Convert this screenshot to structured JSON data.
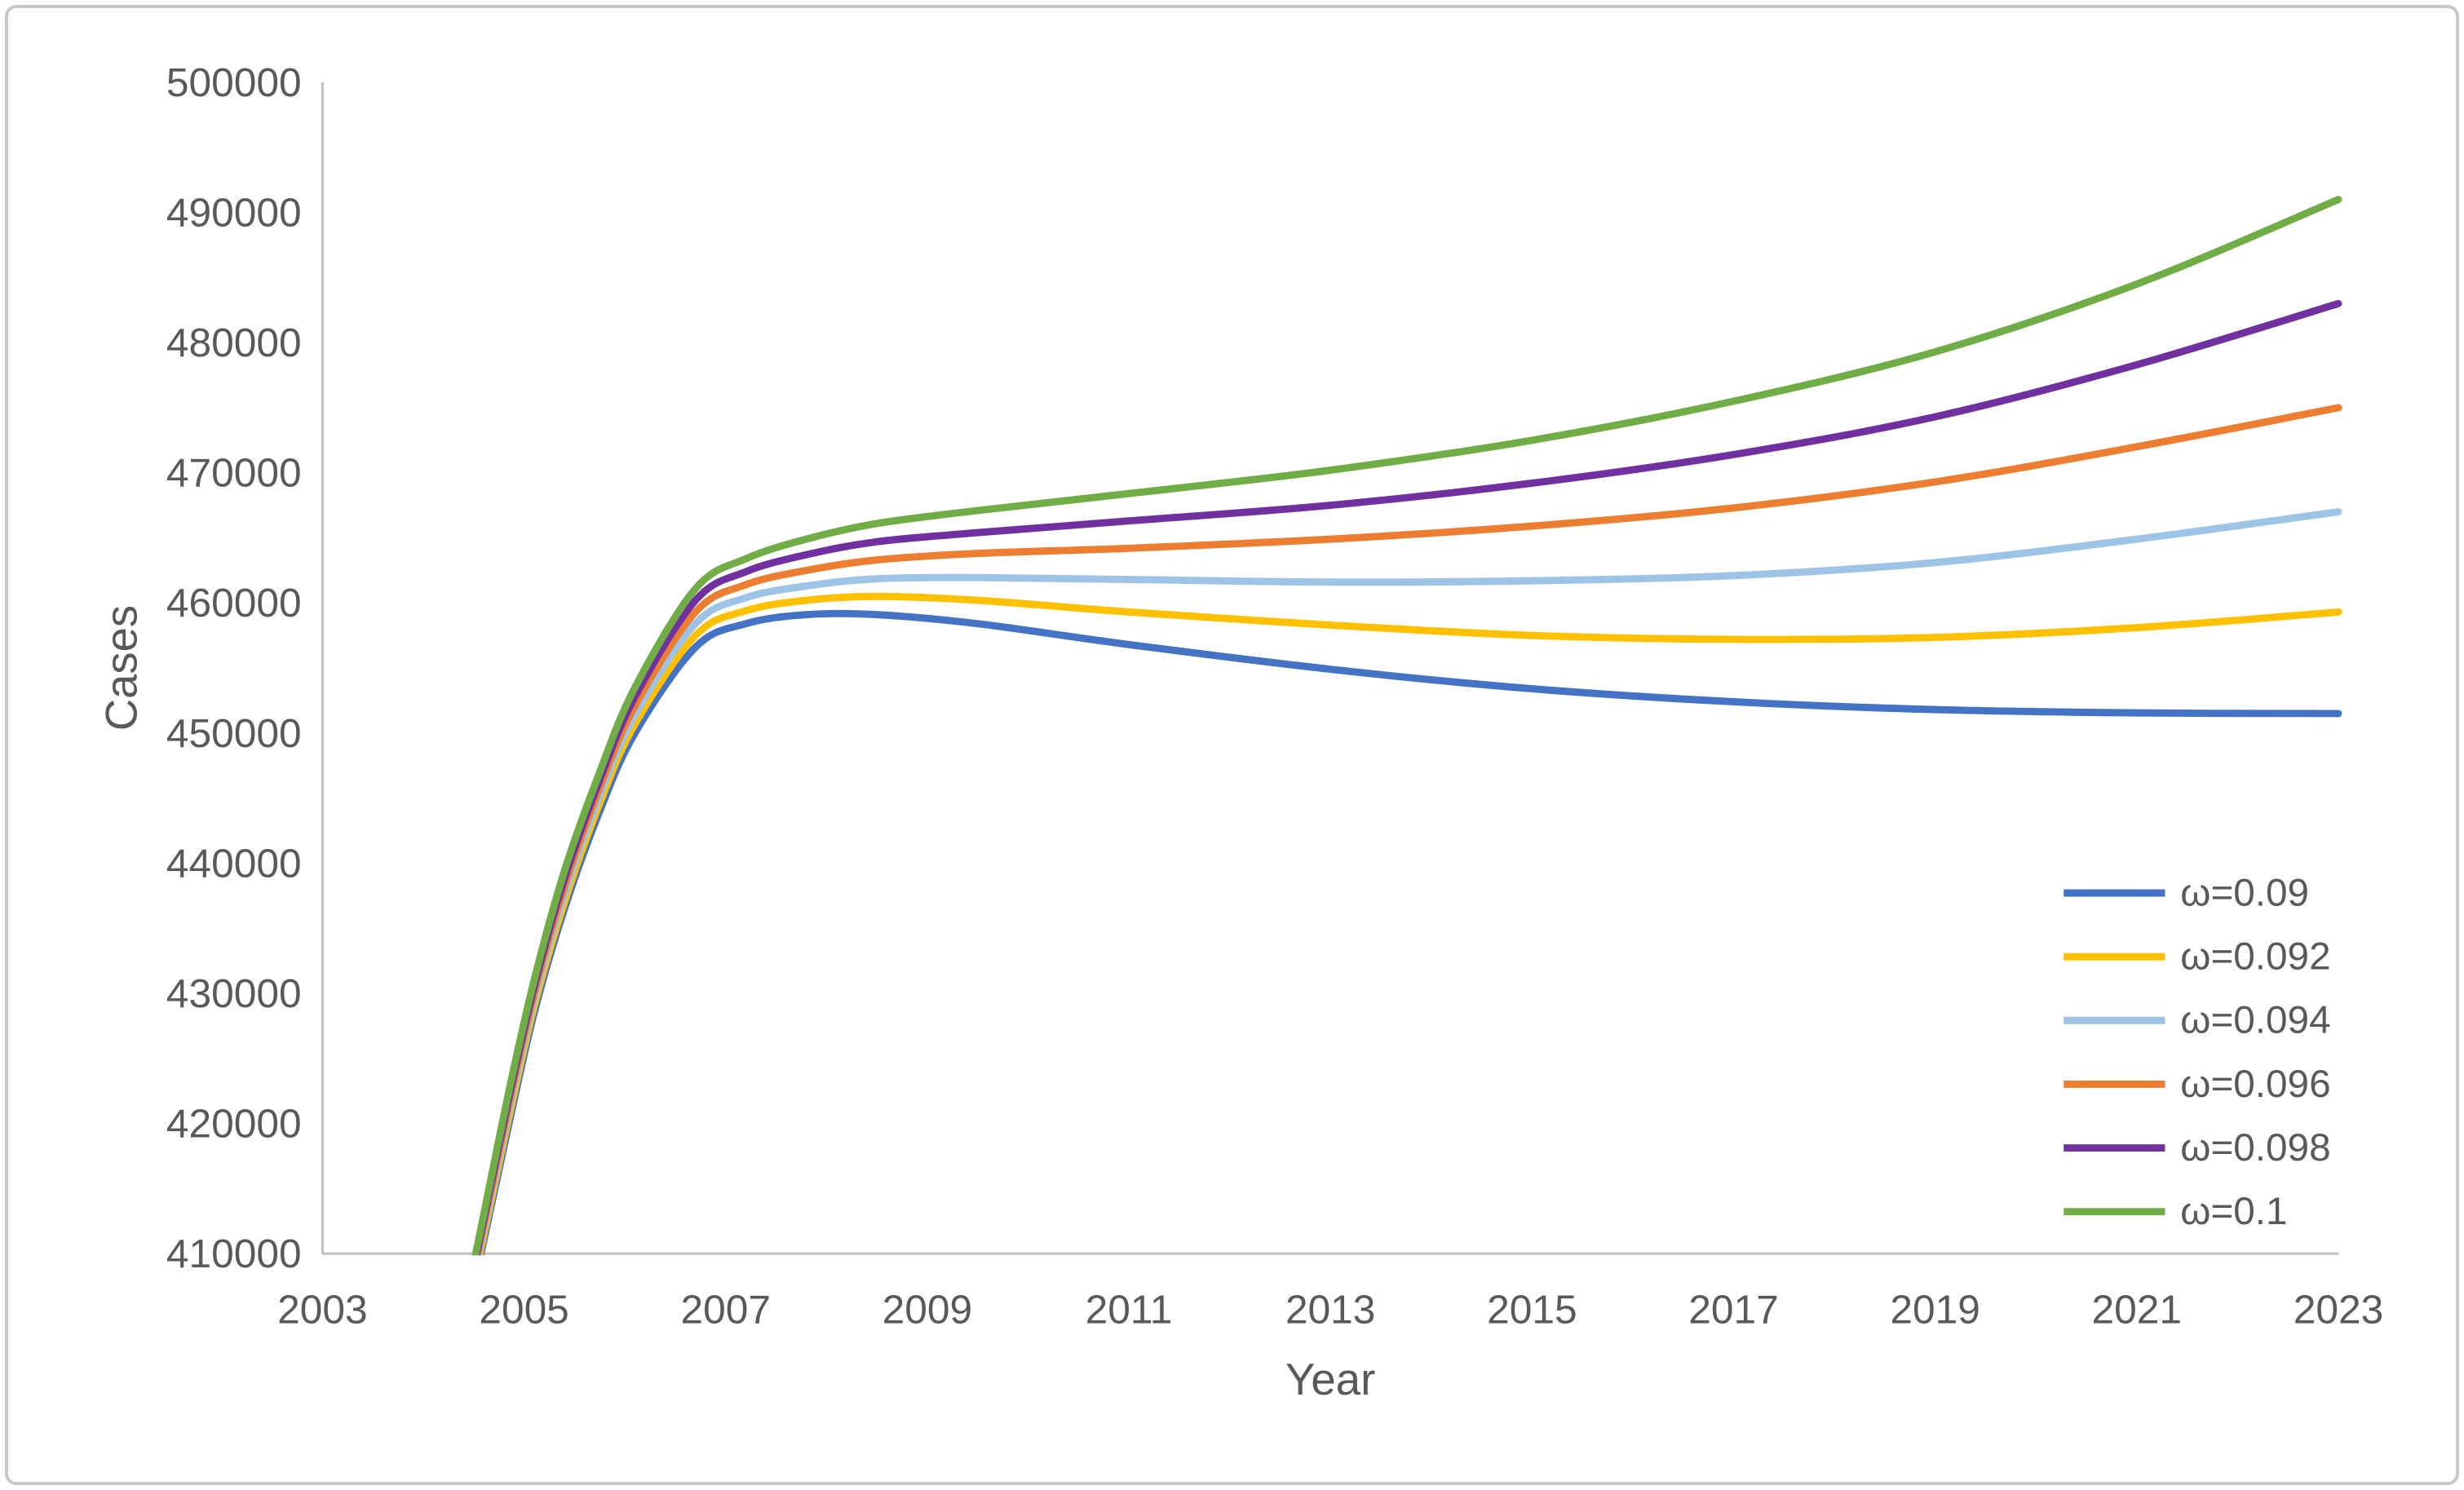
{
  "figure": {
    "background": "#ffffff",
    "border_color": "#c8c8c8"
  },
  "chart_data": {
    "type": "line",
    "title": "",
    "xlabel": "Year",
    "ylabel": "Cases",
    "xlim": [
      2003,
      2023
    ],
    "ylim": [
      410000,
      500000
    ],
    "x_ticks": [
      2003,
      2005,
      2007,
      2009,
      2011,
      2013,
      2015,
      2017,
      2019,
      2021,
      2023
    ],
    "y_ticks": [
      410000,
      420000,
      430000,
      440000,
      450000,
      460000,
      470000,
      480000,
      490000,
      500000
    ],
    "grid": false,
    "legend_position": "inside-lower-right",
    "axis_color": "#bfbfbf",
    "text_color": "#595959",
    "x": [
      2004.4,
      2004.6,
      2004.85,
      2005.1,
      2005.4,
      2005.75,
      2006.1,
      2006.7,
      2007.2,
      2007.8,
      2008.5,
      2009.5,
      2011,
      2013,
      2015,
      2017,
      2019,
      2021,
      2023
    ],
    "series": [
      {
        "name": "ω=0.09",
        "color": "#4472C4",
        "values": [
          404000,
          411000,
          420000,
          428500,
          436500,
          444000,
          450000,
          456600,
          458400,
          459100,
          459100,
          458400,
          456800,
          454900,
          453400,
          452400,
          451800,
          451550,
          451500
        ]
      },
      {
        "name": "ω=0.092",
        "color": "#FFC000",
        "values": [
          404300,
          411400,
          420500,
          429000,
          437000,
          444600,
          450700,
          457500,
          459400,
          460200,
          460500,
          460200,
          459300,
          458300,
          457500,
          457200,
          457350,
          458100,
          459300
        ]
      },
      {
        "name": "ω=0.094",
        "color": "#9DC3E6",
        "values": [
          404600,
          411800,
          421000,
          429500,
          437600,
          445200,
          451400,
          458400,
          460400,
          461300,
          461850,
          461950,
          461800,
          461600,
          461700,
          462100,
          463100,
          464900,
          467000
        ]
      },
      {
        "name": "ω=0.096",
        "color": "#ED7D31",
        "values": [
          404900,
          412200,
          421500,
          430000,
          438200,
          445800,
          452100,
          459300,
          461400,
          462500,
          463300,
          463800,
          464200,
          464900,
          465900,
          467300,
          469300,
          472000,
          475000
        ]
      },
      {
        "name": "ω=0.098",
        "color": "#7030A0",
        "values": [
          405200,
          412600,
          422000,
          430500,
          438800,
          446400,
          452800,
          460200,
          462400,
          463700,
          464700,
          465400,
          466300,
          467500,
          469200,
          471400,
          474300,
          478300,
          483000
        ]
      },
      {
        "name": "ω=0.1",
        "color": "#70AD47",
        "values": [
          405500,
          413000,
          422500,
          431000,
          439400,
          447000,
          453500,
          461100,
          463400,
          464900,
          466100,
          467100,
          468400,
          470200,
          472500,
          475500,
          479300,
          484500,
          491000
        ]
      }
    ]
  }
}
